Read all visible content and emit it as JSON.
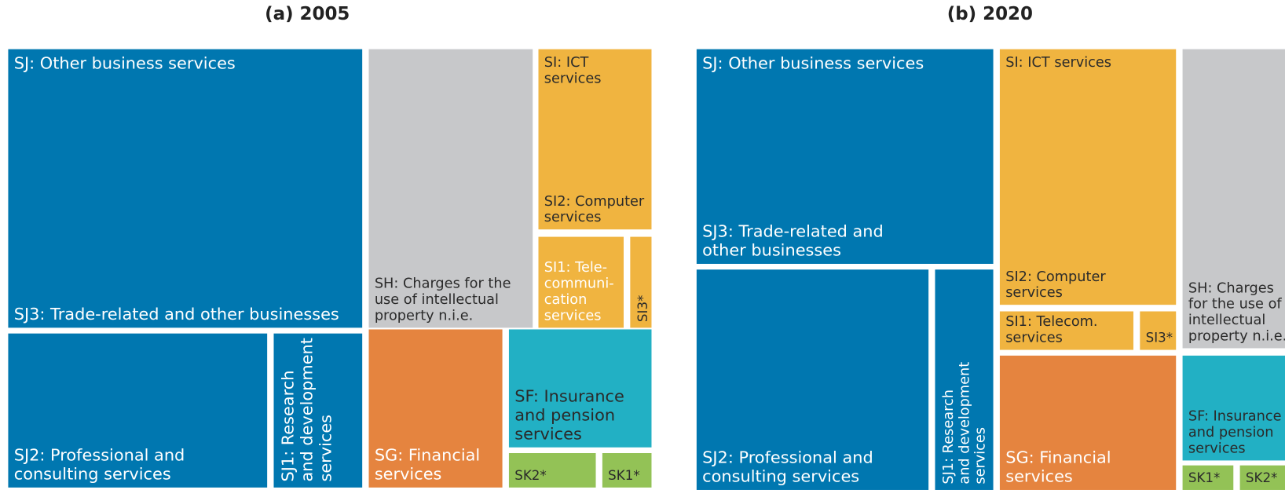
{
  "panels": [
    {
      "title": "(a) 2005",
      "boxes": [
        {
          "labels": [
            [
              "SJ: Other business services"
            ],
            [
              "SJ3: Trade-related and other businesses"
            ]
          ]
        },
        {
          "labels": [
            [
              "SH: Charges for the",
              "use of intellectual",
              "property n.i.e."
            ]
          ]
        },
        {
          "labels": [
            [
              "SI: ICT",
              "services"
            ],
            [
              "SI2: Computer",
              "services"
            ]
          ]
        },
        {
          "labels": [
            [
              "SI1: Tele-",
              "communi-",
              "cation",
              "services"
            ]
          ]
        },
        {
          "labels": [
            [
              "SI3*"
            ]
          ]
        },
        {
          "labels": [
            [
              "SJ2: Professional and",
              "consulting services"
            ]
          ]
        },
        {
          "labels": [
            [
              "SJ1: Research",
              "and development",
              "services"
            ]
          ]
        },
        {
          "labels": [
            [
              "SG: Financial",
              "services"
            ]
          ]
        },
        {
          "labels": [
            [
              "SF: Insurance",
              "and pension",
              "services"
            ]
          ]
        },
        {
          "labels": [
            [
              "SK2*"
            ]
          ]
        },
        {
          "labels": [
            [
              "SK1*"
            ]
          ]
        }
      ]
    },
    {
      "title": "(b) 2020",
      "boxes": [
        {
          "labels": [
            [
              "SJ: Other business services"
            ],
            [
              "SJ3: Trade-related and",
              "other businesses"
            ]
          ]
        },
        {
          "labels": [
            [
              "SJ2: Professional and",
              "consulting services"
            ]
          ]
        },
        {
          "labels": [
            [
              "SJ1: Research",
              "and development",
              "services"
            ]
          ]
        },
        {
          "labels": [
            [
              "SI: ICT services"
            ],
            [
              "SI2: Computer",
              "services"
            ]
          ]
        },
        {
          "labels": [
            [
              "SI1: Telecom.",
              "services"
            ]
          ]
        },
        {
          "labels": [
            [
              "SI3*"
            ]
          ]
        },
        {
          "labels": [
            [
              "SG: Financial",
              "services"
            ]
          ]
        },
        {
          "labels": [
            [
              "SH: Charges",
              "for the use of",
              "intellectual",
              "property n.i.e."
            ]
          ]
        },
        {
          "labels": [
            [
              "SF: Insurance",
              "and pension",
              "services"
            ]
          ]
        },
        {
          "labels": [
            [
              "SK1*"
            ]
          ]
        },
        {
          "labels": [
            [
              "SK2*"
            ]
          ]
        }
      ]
    }
  ]
}
